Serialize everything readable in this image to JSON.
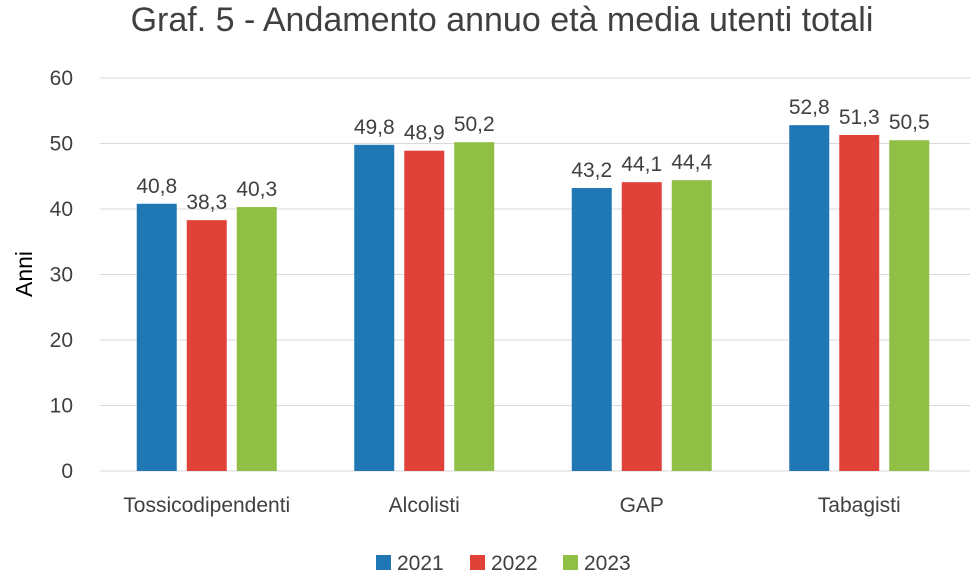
{
  "chart_data": {
    "type": "bar",
    "title": "Graf. 5 - Andamento annuo età media utenti totali",
    "xlabel": "",
    "ylabel": "Anni",
    "ylim": [
      0,
      60
    ],
    "yticks": [
      0,
      10,
      20,
      30,
      40,
      50,
      60
    ],
    "grid": true,
    "legend_position": "bottom",
    "categories": [
      "Tossicodipendenti",
      "Alcolisti",
      "GAP",
      "Tabagisti"
    ],
    "series": [
      {
        "name": "2021",
        "color": "#1f77b4",
        "values": [
          40.8,
          49.8,
          43.2,
          52.8
        ],
        "labels": [
          "40,8",
          "49,8",
          "43,2",
          "52,8"
        ]
      },
      {
        "name": "2022",
        "color": "#e0423a",
        "values": [
          38.3,
          48.9,
          44.1,
          51.3
        ],
        "labels": [
          "38,3",
          "48,9",
          "44,1",
          "51,3"
        ]
      },
      {
        "name": "2023",
        "color": "#8fbf44",
        "values": [
          40.3,
          50.2,
          44.4,
          50.5
        ],
        "labels": [
          "40,3",
          "50,2",
          "44,4",
          "50,5"
        ]
      }
    ]
  }
}
